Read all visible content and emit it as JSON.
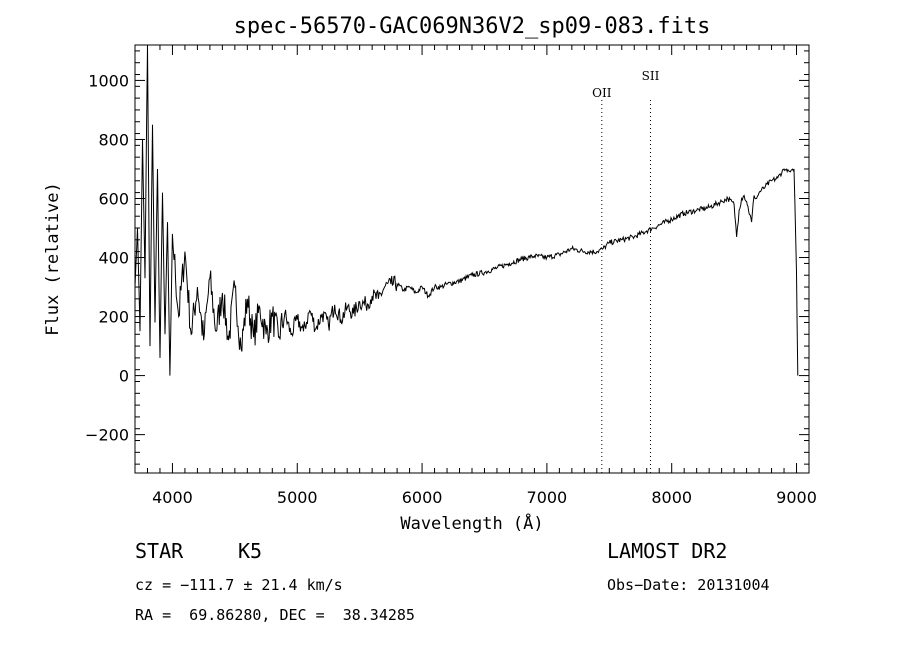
{
  "chart_data": {
    "type": "line",
    "title": "spec-56570-GAC069N36V2_sp09-083.fits",
    "xlabel": "Wavelength (Å)",
    "ylabel": "Flux (relative)",
    "xlim": [
      3700,
      9100
    ],
    "ylim": [
      -330,
      1120
    ],
    "x_ticks": [
      4000,
      5000,
      6000,
      7000,
      8000,
      9000
    ],
    "x_tick_labels": [
      "4000",
      "5000",
      "6000",
      "7000",
      "8000",
      "9000"
    ],
    "y_ticks": [
      -200,
      0,
      200,
      400,
      600,
      800,
      1000
    ],
    "y_tick_labels": [
      "−200",
      "0",
      "200",
      "400",
      "600",
      "800",
      "1000"
    ],
    "grid": false,
    "series": [
      {
        "x": [
          3700,
          3720,
          3740,
          3760,
          3780,
          3800,
          3820,
          3840,
          3860,
          3880,
          3900,
          3920,
          3940,
          3960,
          3980,
          4000,
          4050,
          4100,
          4150,
          4200,
          4250,
          4300,
          4350,
          4400,
          4450,
          4500,
          4550,
          4600,
          4650,
          4700,
          4750,
          4800,
          4850,
          4900,
          4950,
          5000,
          5050,
          5100,
          5150,
          5200,
          5250,
          5300,
          5350,
          5400,
          5450,
          5500,
          5550,
          5600,
          5650,
          5700,
          5750,
          5800,
          5850,
          5900,
          5950,
          6000,
          6050,
          6100,
          6150,
          6200,
          6300,
          6400,
          6500,
          6600,
          6700,
          6800,
          6900,
          7000,
          7100,
          7200,
          7300,
          7400,
          7450,
          7500,
          7600,
          7700,
          7800,
          7850,
          7900,
          8000,
          8100,
          8200,
          8300,
          8400,
          8450,
          8500,
          8520,
          8540,
          8560,
          8580,
          8600,
          8640,
          8660,
          8680,
          8700,
          8750,
          8800,
          8850,
          8900,
          8950,
          8980,
          9000,
          9010
        ],
        "y": [
          300,
          500,
          150,
          800,
          330,
          1120,
          100,
          850,
          180,
          700,
          60,
          620,
          140,
          520,
          0,
          480,
          200,
          420,
          140,
          300,
          120,
          330,
          150,
          280,
          120,
          300,
          90,
          260,
          130,
          230,
          140,
          200,
          130,
          210,
          140,
          190,
          150,
          220,
          160,
          210,
          170,
          240,
          190,
          230,
          210,
          250,
          240,
          270,
          260,
          300,
          310,
          310,
          290,
          300,
          280,
          300,
          270,
          300,
          300,
          310,
          320,
          340,
          350,
          365,
          380,
          395,
          405,
          400,
          410,
          430,
          420,
          420,
          430,
          450,
          460,
          470,
          490,
          500,
          510,
          530,
          550,
          560,
          570,
          590,
          600,
          580,
          470,
          560,
          600,
          610,
          590,
          520,
          610,
          600,
          620,
          640,
          660,
          670,
          700,
          690,
          700,
          350,
          0
        ]
      }
    ],
    "annotations": [
      {
        "label": "OII",
        "x": 7440
      },
      {
        "label": "SII",
        "x": 7830
      }
    ]
  },
  "info": {
    "object_class": "STAR",
    "subclass": "K5",
    "survey": "LAMOST DR2",
    "cz": "cz = −111.7 ± 21.4 km/s",
    "obs_date": "Obs−Date: 20131004",
    "coords": "RA =  69.86280, DEC =  38.34285"
  }
}
